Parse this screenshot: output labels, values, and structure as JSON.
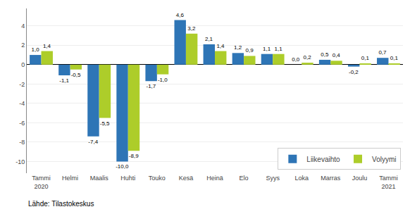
{
  "chart_data": {
    "type": "bar",
    "categories": [
      "Tammi\n2020",
      "Helmi",
      "Maalis",
      "Huhti",
      "Touko",
      "Kesä",
      "Heinä",
      "Elo",
      "Syys",
      "Loka",
      "Marras",
      "Joulu",
      "Tammi\n2021"
    ],
    "series": [
      {
        "name": "Liikevaihto",
        "color": "#2E75B6",
        "values": [
          1.0,
          -1.1,
          -7.4,
          -10.0,
          -1.7,
          4.6,
          2.1,
          1.2,
          1.1,
          0.0,
          0.5,
          -0.2,
          0.7
        ],
        "value_labels": [
          "1,0",
          "-1,1",
          "-7,4",
          "-10,0",
          "-1,7",
          "4,6",
          "2,1",
          "1,2",
          "1,1",
          "0,0",
          "0,5",
          "-0,2",
          "0,7"
        ]
      },
      {
        "name": "Volyymi",
        "color": "#ADCD2A",
        "values": [
          1.4,
          -0.5,
          -5.5,
          -8.9,
          -1.0,
          3.2,
          1.4,
          0.9,
          1.1,
          0.2,
          0.4,
          0.1,
          0.1
        ],
        "value_labels": [
          "1,4",
          "-0,5",
          "-5,5",
          "-8,9",
          "-1,0",
          "3,2",
          "1,4",
          "0,9",
          "1,1",
          "0,2",
          "0,4",
          "0,1",
          "0,1"
        ]
      }
    ],
    "ylim": [
      -11.2,
      5.8
    ],
    "yticks": [
      -10,
      -8,
      -6,
      -4,
      -2,
      0,
      2,
      4
    ],
    "grid": true,
    "legend": "lower right",
    "data_labels": true,
    "annotations": [
      {
        "text": "Lähde: Tilastokeskus"
      }
    ]
  }
}
